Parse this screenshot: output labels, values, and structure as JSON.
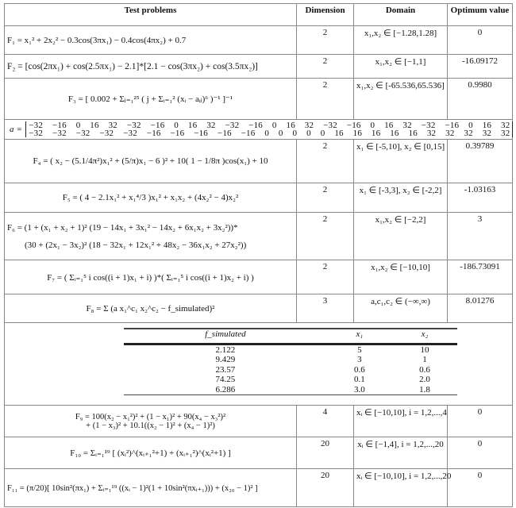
{
  "headers": {
    "problem": "Test problems",
    "dimension": "Dimension",
    "domain": "Domain",
    "optimum": "Optimum value"
  },
  "rows": [
    {
      "formula": "F₁ = x₁² + 2x₂² − 0.3cos(3πx₁) − 0.4cos(4πx₂) + 0.7",
      "dimension": "2",
      "domain": "x₁,x₂ ∈ [−1.28,1.28]",
      "optimum": "0"
    },
    {
      "formula": "F₂ = [cos(2πx₁) + cos(2.5πx₁) − 2.1]*[2.1 − cos(3πx₂) + cos(3.5πx₂)]",
      "dimension": "2",
      "domain": "x₁,x₂ ∈ [−1,1]",
      "optimum": "-16.09172"
    },
    {
      "formula": "F₃ = [ 0.002 + Σⱼ₌₁²⁵ ( j + Σᵢ₌₁² (xᵢ − aᵢⱼ)⁶ )⁻¹ ]⁻¹",
      "dimension": "2",
      "domain": "x₁,x₂ ∈ [-65.536,65.536]",
      "optimum": "0.9980"
    }
  ],
  "a_matrix": {
    "label": "a =",
    "row1": "−32  −16  0  16  32  −32  −16  0  16  32  −32  −16  0  16  32  −32  −16  0  16  32  −32  −16  0  16  32",
    "row2": "−32  −32  −32  −32  −32  −16  −16  −16  −16  −16  0  0  0  0  0  16  16  16  16  16  32  32  32  32  32"
  },
  "rows2": [
    {
      "formula": "F₄ = ( x₂ − (5.1/4π²)x₁² + (5/π)x₁ − 6 )² + 10( 1 − 1/8π )cos(x₁) + 10",
      "dimension": "2",
      "domain": "x₁ ∈ [-5,10], x₂ ∈ [0,15]",
      "optimum": "0.39789"
    },
    {
      "formula": "F₅ = ( 4 − 2.1x₁² + x₁⁴/3 )x₁² + x₁x₂ + (4x₂² − 4)x₂²",
      "dimension": "2",
      "domain": "x₁ ∈ [-3,3], x₂ ∈ [-2,2]",
      "optimum": "-1.03163"
    },
    {
      "formula": "F₆ = (1 + (x₁ + x₂ + 1)² (19 − 14x₁ + 3x₁² − 14x₂ + 6x₁x₂ + 3x₂²))*",
      "formula2": "(30 + (2x₁ − 3x₂)² (18 − 32x₁ + 12x₁² + 48x₂ − 36x₁x₂ + 27x₂²))",
      "dimension": "2",
      "domain": "x₁,x₂ ∈ [−2,2]",
      "optimum": "3"
    },
    {
      "formula": "F₇ = ( Σᵢ₌₁⁵ i cos((i + 1)x₁ + i) )*( Σᵢ₌₁⁵ i cos((i + 1)x₂ + i) )",
      "dimension": "2",
      "domain": "x₁,x₂ ∈ [−10,10]",
      "optimum": "-186.73091"
    },
    {
      "formula": "F₈ = Σ (a x₁^c₁ x₂^c₂ − f_simulated)²",
      "dimension": "3",
      "domain": "a,c₁,c₂ ∈ (−∞,∞)",
      "optimum": "8.01276"
    }
  ],
  "simulated": {
    "headers": [
      "f_simulated",
      "x₁",
      "x₂"
    ],
    "rows": [
      [
        "2.122",
        "5",
        "10"
      ],
      [
        "9.429",
        "3",
        "1"
      ],
      [
        "23.57",
        "0.6",
        "0.6"
      ],
      [
        "74.25",
        "0.1",
        "2.0"
      ],
      [
        "6.286",
        "3.0",
        "1.8"
      ]
    ]
  },
  "rows3": [
    {
      "formula": "F₉ = 100(x₂ − x₁²)² + (1 − x₁)² + 90(x₄ − x₃²)²",
      "formula2": "+ (1 − x₃)² + 10.1((x₂ − 1)² + (x₄ − 1)²)",
      "dimension": "4",
      "domain": "xᵢ ∈ [−10,10], i = 1,2,...,4",
      "optimum": "0"
    },
    {
      "formula": "F₁₀ = Σᵢ₌₁¹⁹ [ (xᵢ²)^(xᵢ₊₁²+1) + (xᵢ₊₁²)^(xᵢ²+1) ]",
      "dimension": "20",
      "domain": "xᵢ ∈ [−1,4], i = 1,2,...,20",
      "optimum": "0"
    },
    {
      "formula": "F₁₁ = (π/20)[ 10sin²(πx₁) + Σᵢ₌₁¹⁹ ((xᵢ − 1)²(1 + 10sin²(πxᵢ₊₁))) + (x₂₀ − 1)² ]",
      "dimension": "20",
      "domain": "xᵢ ∈ [−10,10], i = 1,2,...,20",
      "optimum": "0"
    }
  ]
}
